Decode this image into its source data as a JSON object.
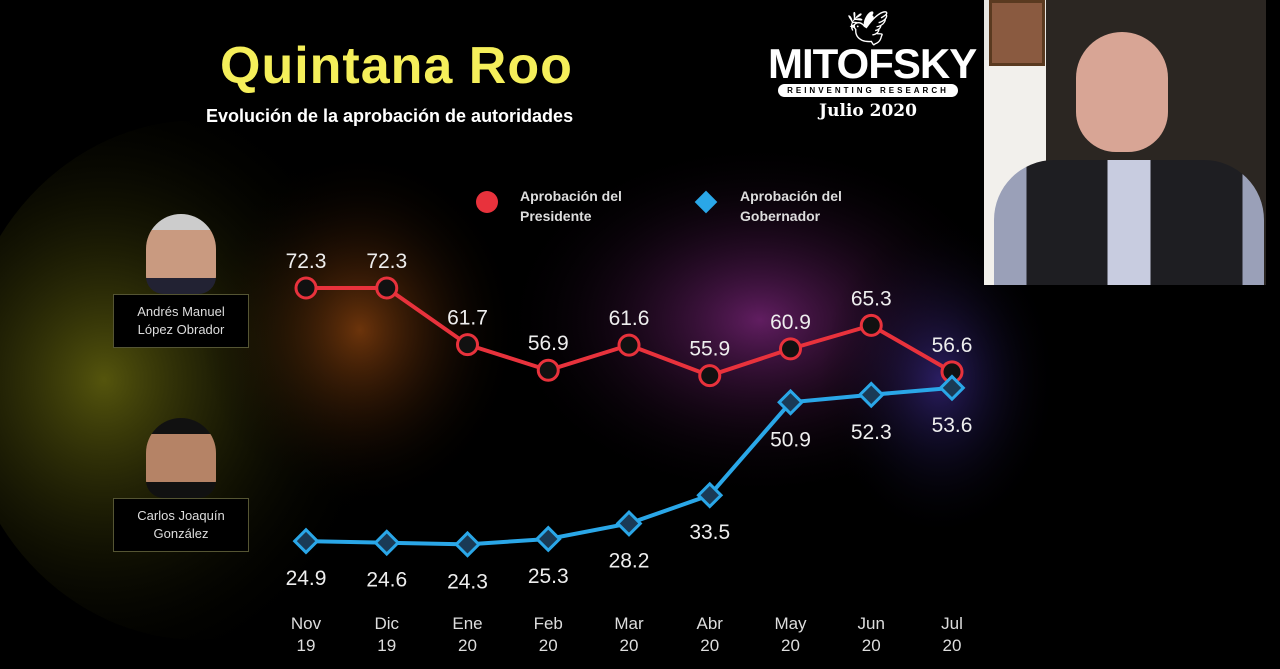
{
  "header": {
    "title": "Quintana Roo",
    "subtitle": "Evolución de la aprobación de autoridades"
  },
  "logo": {
    "name": "MITOFSKY",
    "tagline": "REINVENTING RESEARCH",
    "date": "Julio 2020"
  },
  "people": [
    {
      "name_line1": "Andrés Manuel",
      "name_line2": "López Obrador"
    },
    {
      "name_line1": "Carlos Joaquín",
      "name_line2": "González"
    }
  ],
  "colors": {
    "president": "#e8323c",
    "governor": "#2aa7e8",
    "title": "#f5ef5a"
  },
  "chart_data": {
    "type": "line",
    "title": "Evolución de la aprobación de autoridades",
    "categories": [
      [
        "Nov",
        "19"
      ],
      [
        "Dic",
        "19"
      ],
      [
        "Ene",
        "20"
      ],
      [
        "Feb",
        "20"
      ],
      [
        "Mar",
        "20"
      ],
      [
        "Abr",
        "20"
      ],
      [
        "May",
        "20"
      ],
      [
        "Jun",
        "20"
      ],
      [
        "Jul",
        "20"
      ]
    ],
    "series": [
      {
        "name_line1": "Aprobación del",
        "name_line2": "Presidente",
        "marker": "circle",
        "values": [
          72.3,
          72.3,
          61.7,
          56.9,
          61.6,
          55.9,
          60.9,
          65.3,
          56.6
        ]
      },
      {
        "name_line1": "Aprobación del",
        "name_line2": "Gobernador",
        "marker": "diamond",
        "values": [
          24.9,
          24.6,
          24.3,
          25.3,
          28.2,
          33.5,
          50.9,
          52.3,
          53.6
        ]
      }
    ],
    "value_labels": [
      "72.3",
      "72.3",
      "61.7",
      "56.9",
      "61.6",
      "55.9",
      "60.9",
      "65.3",
      "56.6",
      "24.9",
      "24.6",
      "24.3",
      "25.3",
      "28.2",
      "33.5",
      "50.9",
      "52.3",
      "53.6"
    ],
    "legend": "top-right",
    "grid": false
  }
}
